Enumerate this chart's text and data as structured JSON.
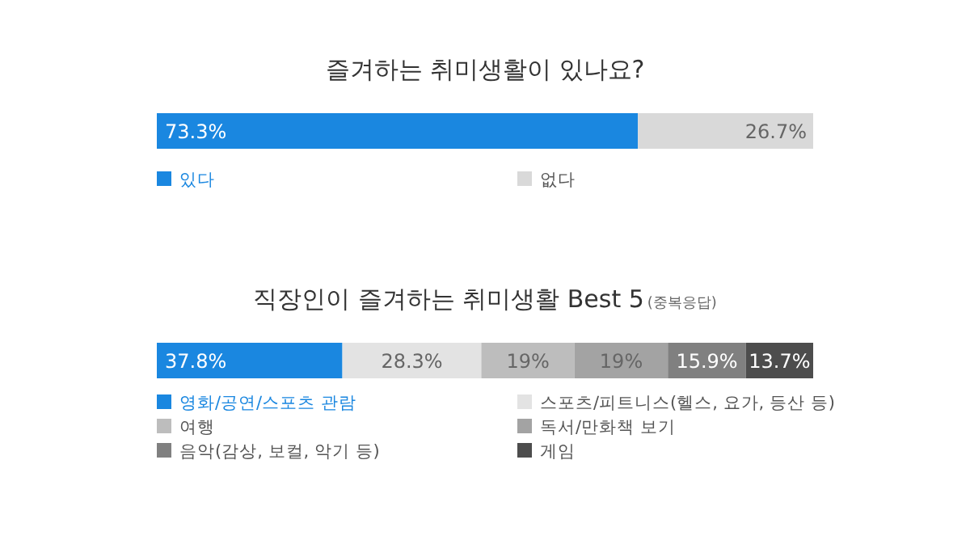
{
  "chart_data": [
    {
      "type": "bar",
      "orientation": "horizontal",
      "stacked": true,
      "title": "즐겨하는 취미생활이 있나요?",
      "categories": [
        null
      ],
      "xlim": [
        0,
        100
      ],
      "tick_labels": false,
      "legend": "bottom",
      "series": [
        {
          "name": "있다",
          "color": "#1a87e0",
          "values": [
            73.3
          ],
          "value_labels": [
            "73.3%"
          ]
        },
        {
          "name": "없다",
          "color": "#d9d9d9",
          "values": [
            26.7
          ],
          "value_labels": [
            "26.7%"
          ]
        }
      ]
    },
    {
      "type": "bar",
      "orientation": "horizontal",
      "stacked": true,
      "title": "직장인이 즐겨하는 취미생활 Best 5",
      "subtitle": "(중복응답)",
      "categories": [
        null
      ],
      "xlim": [
        0,
        133.7
      ],
      "tick_labels": false,
      "legend": "bottom",
      "series": [
        {
          "name": "영화/공연/스포츠 관람",
          "color": "#1a87e0",
          "values": [
            37.8
          ],
          "value_labels": [
            "37.8%"
          ]
        },
        {
          "name": "스포츠/피트니스(헬스, 요가, 등산 등)",
          "color": "#e3e3e3",
          "values": [
            28.3
          ],
          "value_labels": [
            "28.3%"
          ]
        },
        {
          "name": "여행",
          "color": "#bdbdbd",
          "values": [
            19
          ],
          "value_labels": [
            "19%"
          ]
        },
        {
          "name": "독서/만화책 보기",
          "color": "#a3a3a3",
          "values": [
            19
          ],
          "value_labels": [
            "19%"
          ]
        },
        {
          "name": "음악(감상, 보컬, 악기 등)",
          "color": "#808080",
          "values": [
            15.9
          ],
          "value_labels": [
            "15.9%"
          ]
        },
        {
          "name": "게임",
          "color": "#4d4d4d",
          "values": [
            13.7
          ],
          "value_labels": [
            "13.7%"
          ]
        }
      ]
    }
  ]
}
